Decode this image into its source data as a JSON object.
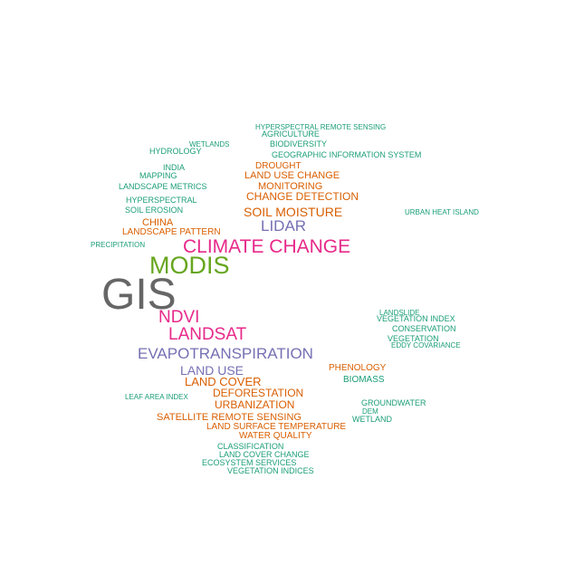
{
  "words": [
    {
      "text": "GIS",
      "color": "#666666"
    },
    {
      "text": "MODIS",
      "color": "#66a61e"
    },
    {
      "text": "CLIMATE CHANGE",
      "color": "#e7298a"
    },
    {
      "text": "NDVI",
      "color": "#e7298a"
    },
    {
      "text": "LANDSAT",
      "color": "#e7298a"
    },
    {
      "text": "EVAPOTRANSPIRATION",
      "color": "#7570b3"
    },
    {
      "text": "LIDAR",
      "color": "#7570b3"
    },
    {
      "text": "LAND USE",
      "color": "#7570b3"
    },
    {
      "text": "SOIL MOISTURE",
      "color": "#d95f02"
    },
    {
      "text": "LAND COVER",
      "color": "#d95f02"
    },
    {
      "text": "DEFORESTATION",
      "color": "#d95f02"
    },
    {
      "text": "CHANGE DETECTION",
      "color": "#d95f02"
    },
    {
      "text": "URBANIZATION",
      "color": "#d95f02"
    },
    {
      "text": "LAND USE CHANGE",
      "color": "#d95f02"
    },
    {
      "text": "SATELLITE REMOTE SENSING",
      "color": "#d95f02"
    },
    {
      "text": "MONITORING",
      "color": "#d95f02"
    },
    {
      "text": "CHINA",
      "color": "#d95f02"
    },
    {
      "text": "LAND SURFACE TEMPERATURE",
      "color": "#d95f02"
    },
    {
      "text": "PHENOLOGY",
      "color": "#d95f02"
    },
    {
      "text": "LANDSCAPE PATTERN",
      "color": "#d95f02"
    },
    {
      "text": "WATER QUALITY",
      "color": "#d95f02"
    },
    {
      "text": "BIOMASS",
      "color": "#1b9e77"
    },
    {
      "text": "DROUGHT",
      "color": "#d95f02"
    },
    {
      "text": "HYPERSPECTRAL",
      "color": "#1b9e77"
    },
    {
      "text": "CLASSIFICATION",
      "color": "#1b9e77"
    },
    {
      "text": "VEGETATION INDEX",
      "color": "#1b9e77"
    },
    {
      "text": "SOIL EROSION",
      "color": "#1b9e77"
    },
    {
      "text": "LAND COVER CHANGE",
      "color": "#1b9e77"
    },
    {
      "text": "ECOSYSTEM SERVICES",
      "color": "#1b9e77"
    },
    {
      "text": "GROUNDWATER",
      "color": "#1b9e77"
    },
    {
      "text": "HYDROLOGY",
      "color": "#1b9e77"
    },
    {
      "text": "LANDSCAPE METRICS",
      "color": "#1b9e77"
    },
    {
      "text": "GEOGRAPHIC INFORMATION SYSTEM",
      "color": "#1b9e77"
    },
    {
      "text": "BIODIVERSITY",
      "color": "#1b9e77"
    },
    {
      "text": "WETLAND",
      "color": "#1b9e77"
    },
    {
      "text": "CONSERVATION",
      "color": "#1b9e77"
    },
    {
      "text": "VEGETATION INDICES",
      "color": "#1b9e77"
    },
    {
      "text": "AGRICULTURE",
      "color": "#1b9e77"
    },
    {
      "text": "MAPPING",
      "color": "#1b9e77"
    },
    {
      "text": "VEGETATION",
      "color": "#1b9e77"
    },
    {
      "text": "INDIA",
      "color": "#1b9e77"
    },
    {
      "text": "URBAN HEAT ISLAND",
      "color": "#1b9e77"
    },
    {
      "text": "EDDY COVARIANCE",
      "color": "#1b9e77"
    },
    {
      "text": "WETLANDS",
      "color": "#1b9e77"
    },
    {
      "text": "PRECIPITATION",
      "color": "#1b9e77"
    },
    {
      "text": "HYPERSPECTRAL REMOTE SENSING",
      "color": "#1b9e77"
    },
    {
      "text": "LEAF AREA INDEX",
      "color": "#1b9e77"
    },
    {
      "text": "LANDSLIDE",
      "color": "#1b9e77"
    },
    {
      "text": "DEM",
      "color": "#1b9e77"
    }
  ]
}
